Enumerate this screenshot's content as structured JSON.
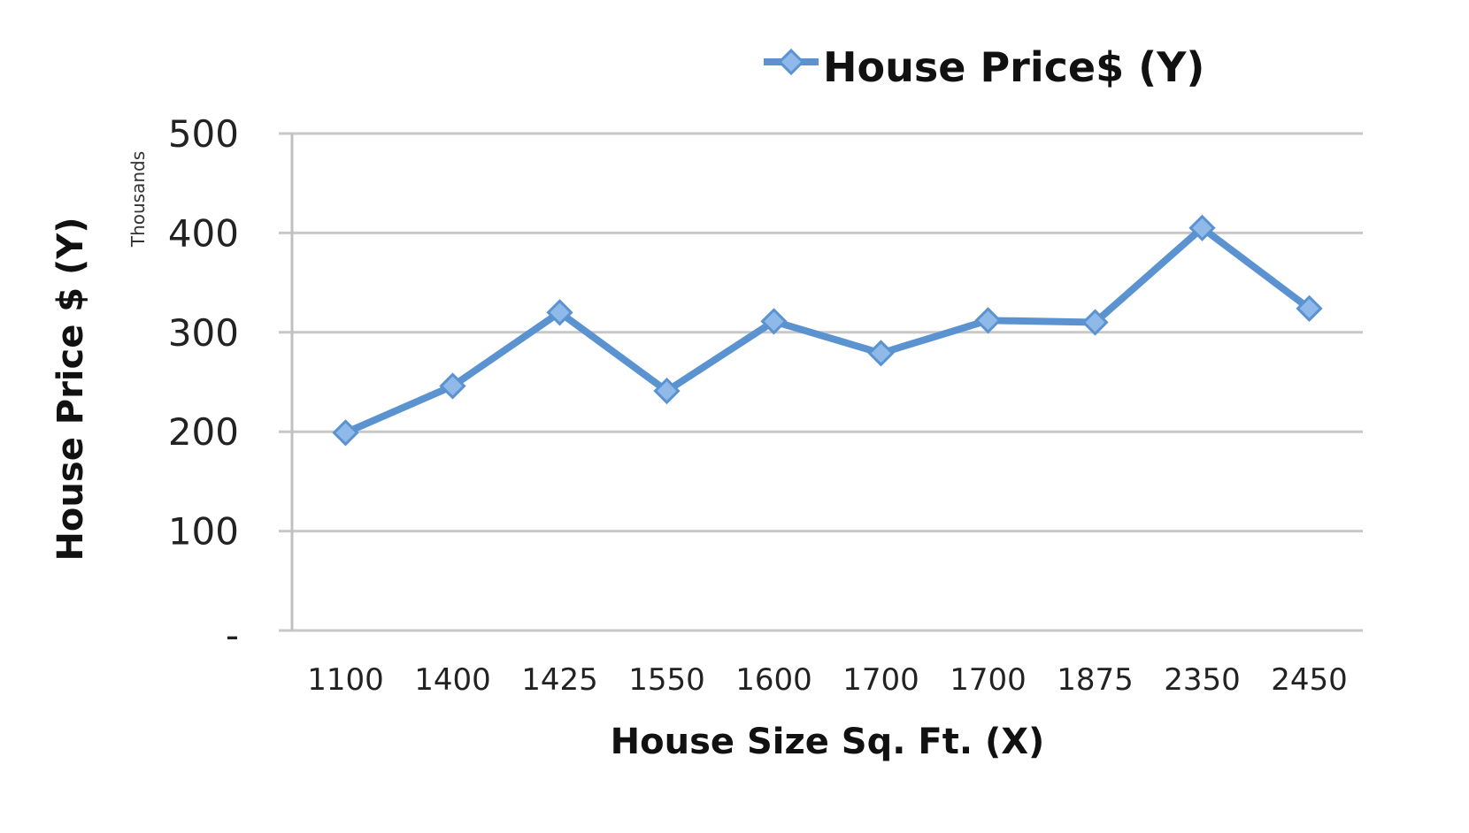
{
  "chart_data": {
    "type": "line",
    "legend": {
      "placement": "top-right"
    },
    "categories": [
      "1100",
      "1400",
      "1425",
      "1550",
      "1600",
      "1700",
      "1700",
      "1875",
      "2350",
      "2450"
    ],
    "series": [
      {
        "name": "House Price$ (Y)",
        "color": "#5b93d1",
        "marker": "diamond",
        "values": [
          199,
          246,
          320,
          241,
          311,
          279,
          312,
          310,
          405,
          324
        ]
      }
    ],
    "ylim": [
      0,
      500
    ],
    "yticks": [
      0,
      100,
      200,
      300,
      400,
      500
    ],
    "ytick_labels": [
      "-",
      "100",
      "200",
      "300",
      "400",
      "500"
    ],
    "xlabel": "House Size Sq. Ft. (X)",
    "ylabel": "House Price  $ (Y)",
    "y_unit_label": "Thousands",
    "grid": true
  }
}
